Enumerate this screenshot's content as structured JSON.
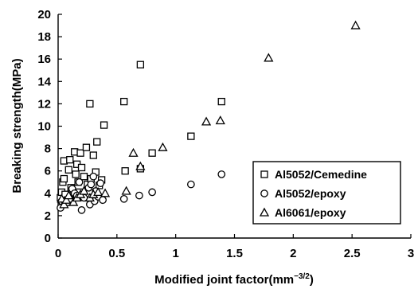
{
  "chart_data": {
    "type": "scatter",
    "title": "",
    "xlabel": "Modified joint factor(mm",
    "xlabel_sup": "−3/2",
    "xlabel_end": ")",
    "ylabel": "Breaking strength(MPa)",
    "xlim": [
      0,
      3
    ],
    "ylim": [
      0,
      20
    ],
    "x_ticks": [
      "0",
      "0.5",
      "1",
      "1.5",
      "2",
      "2.5",
      "3"
    ],
    "y_ticks": [
      "0",
      "2",
      "4",
      "6",
      "8",
      "10",
      "12",
      "14",
      "16",
      "18",
      "20"
    ],
    "grid": false,
    "legend_position": "lower-right",
    "series": [
      {
        "name": "Al5052/Cemedine",
        "marker": "square",
        "points": [
          [
            0.02,
            3.6
          ],
          [
            0.03,
            4.1
          ],
          [
            0.04,
            5.0
          ],
          [
            0.05,
            5.3
          ],
          [
            0.05,
            6.9
          ],
          [
            0.06,
            3.9
          ],
          [
            0.08,
            3.4
          ],
          [
            0.09,
            6.1
          ],
          [
            0.1,
            7.0
          ],
          [
            0.11,
            4.5
          ],
          [
            0.13,
            3.9
          ],
          [
            0.14,
            7.7
          ],
          [
            0.15,
            5.7
          ],
          [
            0.16,
            6.6
          ],
          [
            0.17,
            5.0
          ],
          [
            0.18,
            4.1
          ],
          [
            0.19,
            7.6
          ],
          [
            0.2,
            6.3
          ],
          [
            0.21,
            3.7
          ],
          [
            0.22,
            5.5
          ],
          [
            0.24,
            8.1
          ],
          [
            0.25,
            4.8
          ],
          [
            0.27,
            12.0
          ],
          [
            0.28,
            5.3
          ],
          [
            0.3,
            7.4
          ],
          [
            0.32,
            5.9
          ],
          [
            0.33,
            8.6
          ],
          [
            0.35,
            4.7
          ],
          [
            0.37,
            5.2
          ],
          [
            0.39,
            10.1
          ],
          [
            0.56,
            12.2
          ],
          [
            0.57,
            6.0
          ],
          [
            0.7,
            15.5
          ],
          [
            0.7,
            6.2
          ],
          [
            0.8,
            7.6
          ],
          [
            1.13,
            9.1
          ],
          [
            1.39,
            12.2
          ]
        ]
      },
      {
        "name": "Al5052/epoxy",
        "marker": "circle",
        "points": [
          [
            0.02,
            2.7
          ],
          [
            0.03,
            3.3
          ],
          [
            0.06,
            3.1
          ],
          [
            0.08,
            3.2
          ],
          [
            0.1,
            3.5
          ],
          [
            0.12,
            4.4
          ],
          [
            0.14,
            4.0
          ],
          [
            0.16,
            3.8
          ],
          [
            0.18,
            5.0
          ],
          [
            0.2,
            2.5
          ],
          [
            0.22,
            3.6
          ],
          [
            0.26,
            4.5
          ],
          [
            0.27,
            3.0
          ],
          [
            0.28,
            4.8
          ],
          [
            0.3,
            5.5
          ],
          [
            0.31,
            3.3
          ],
          [
            0.32,
            4.2
          ],
          [
            0.34,
            3.7
          ],
          [
            0.36,
            4.9
          ],
          [
            0.38,
            3.4
          ],
          [
            0.56,
            3.5
          ],
          [
            0.69,
            3.8
          ],
          [
            0.8,
            4.1
          ],
          [
            1.13,
            4.8
          ],
          [
            1.39,
            5.7
          ]
        ]
      },
      {
        "name": "Al6061/epoxy",
        "marker": "triangle",
        "points": [
          [
            0.03,
            3.5
          ],
          [
            0.05,
            3.0
          ],
          [
            0.07,
            3.4
          ],
          [
            0.09,
            3.8
          ],
          [
            0.13,
            3.2
          ],
          [
            0.16,
            3.6
          ],
          [
            0.19,
            3.9
          ],
          [
            0.22,
            4.2
          ],
          [
            0.27,
            3.6
          ],
          [
            0.3,
            3.9
          ],
          [
            0.34,
            4.1
          ],
          [
            0.4,
            4.0
          ],
          [
            0.58,
            4.2
          ],
          [
            0.64,
            7.6
          ],
          [
            0.7,
            6.4
          ],
          [
            0.89,
            8.1
          ],
          [
            1.26,
            10.4
          ],
          [
            1.38,
            10.5
          ],
          [
            1.79,
            16.1
          ],
          [
            2.53,
            19.0
          ]
        ]
      }
    ]
  }
}
